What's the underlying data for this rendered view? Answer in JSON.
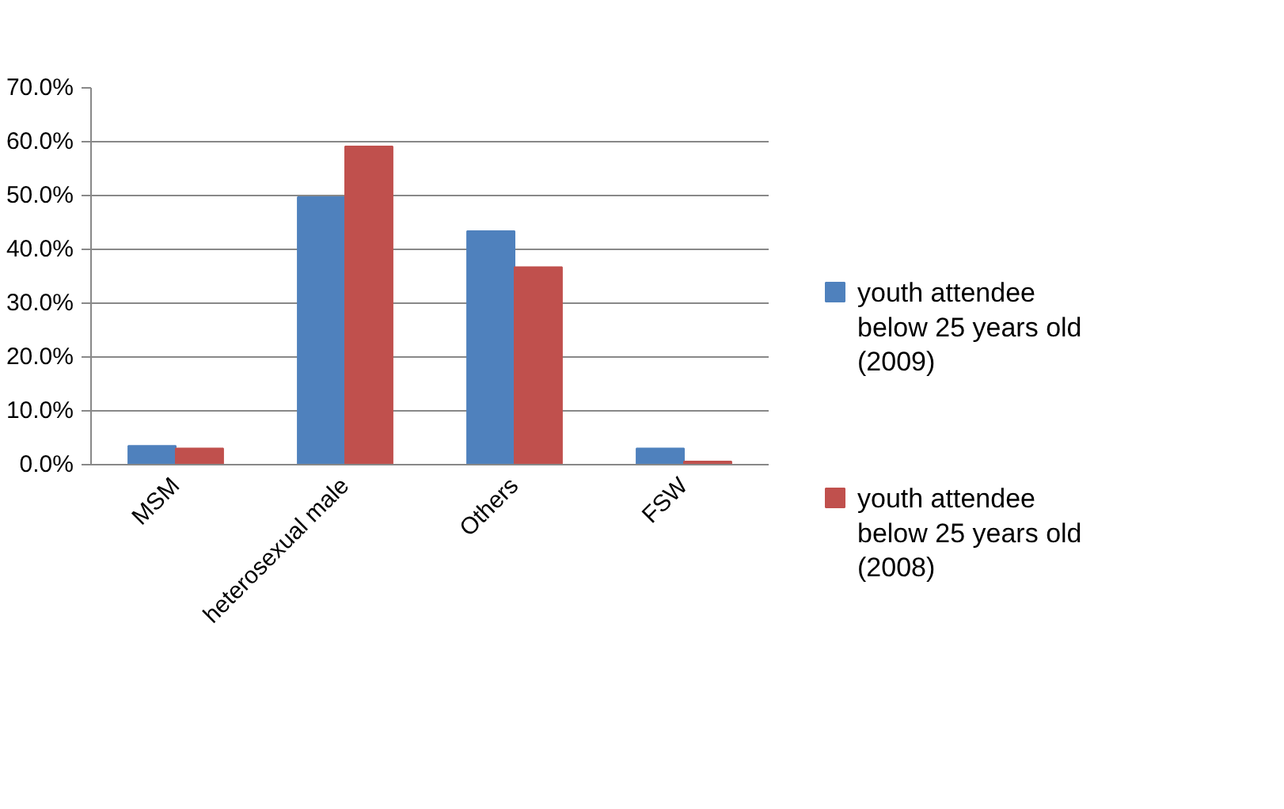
{
  "chart_data": {
    "type": "bar",
    "categories": [
      "MSM",
      "heterosexual male",
      "Others",
      "FSW"
    ],
    "series": [
      {
        "name": "youth attendee below 25 years old (2009)",
        "color": "#4f81bd",
        "values": [
          3.5,
          49.7,
          43.4,
          3.0
        ]
      },
      {
        "name": "youth attendee below 25 years old (2008)",
        "color": "#c0504d",
        "values": [
          3.0,
          59.1,
          36.7,
          0.6
        ]
      }
    ],
    "ylim": [
      0,
      70
    ],
    "yticks": [
      {
        "value": 0,
        "label": "0.0%"
      },
      {
        "value": 10,
        "label": "10.0%"
      },
      {
        "value": 20,
        "label": "20.0%"
      },
      {
        "value": 30,
        "label": "30.0%"
      },
      {
        "value": 40,
        "label": "40.0%"
      },
      {
        "value": 50,
        "label": "50.0%"
      },
      {
        "value": 60,
        "label": "60.0%"
      },
      {
        "value": 70,
        "label": "70.0%"
      }
    ],
    "grid": "y",
    "legend": "right"
  }
}
